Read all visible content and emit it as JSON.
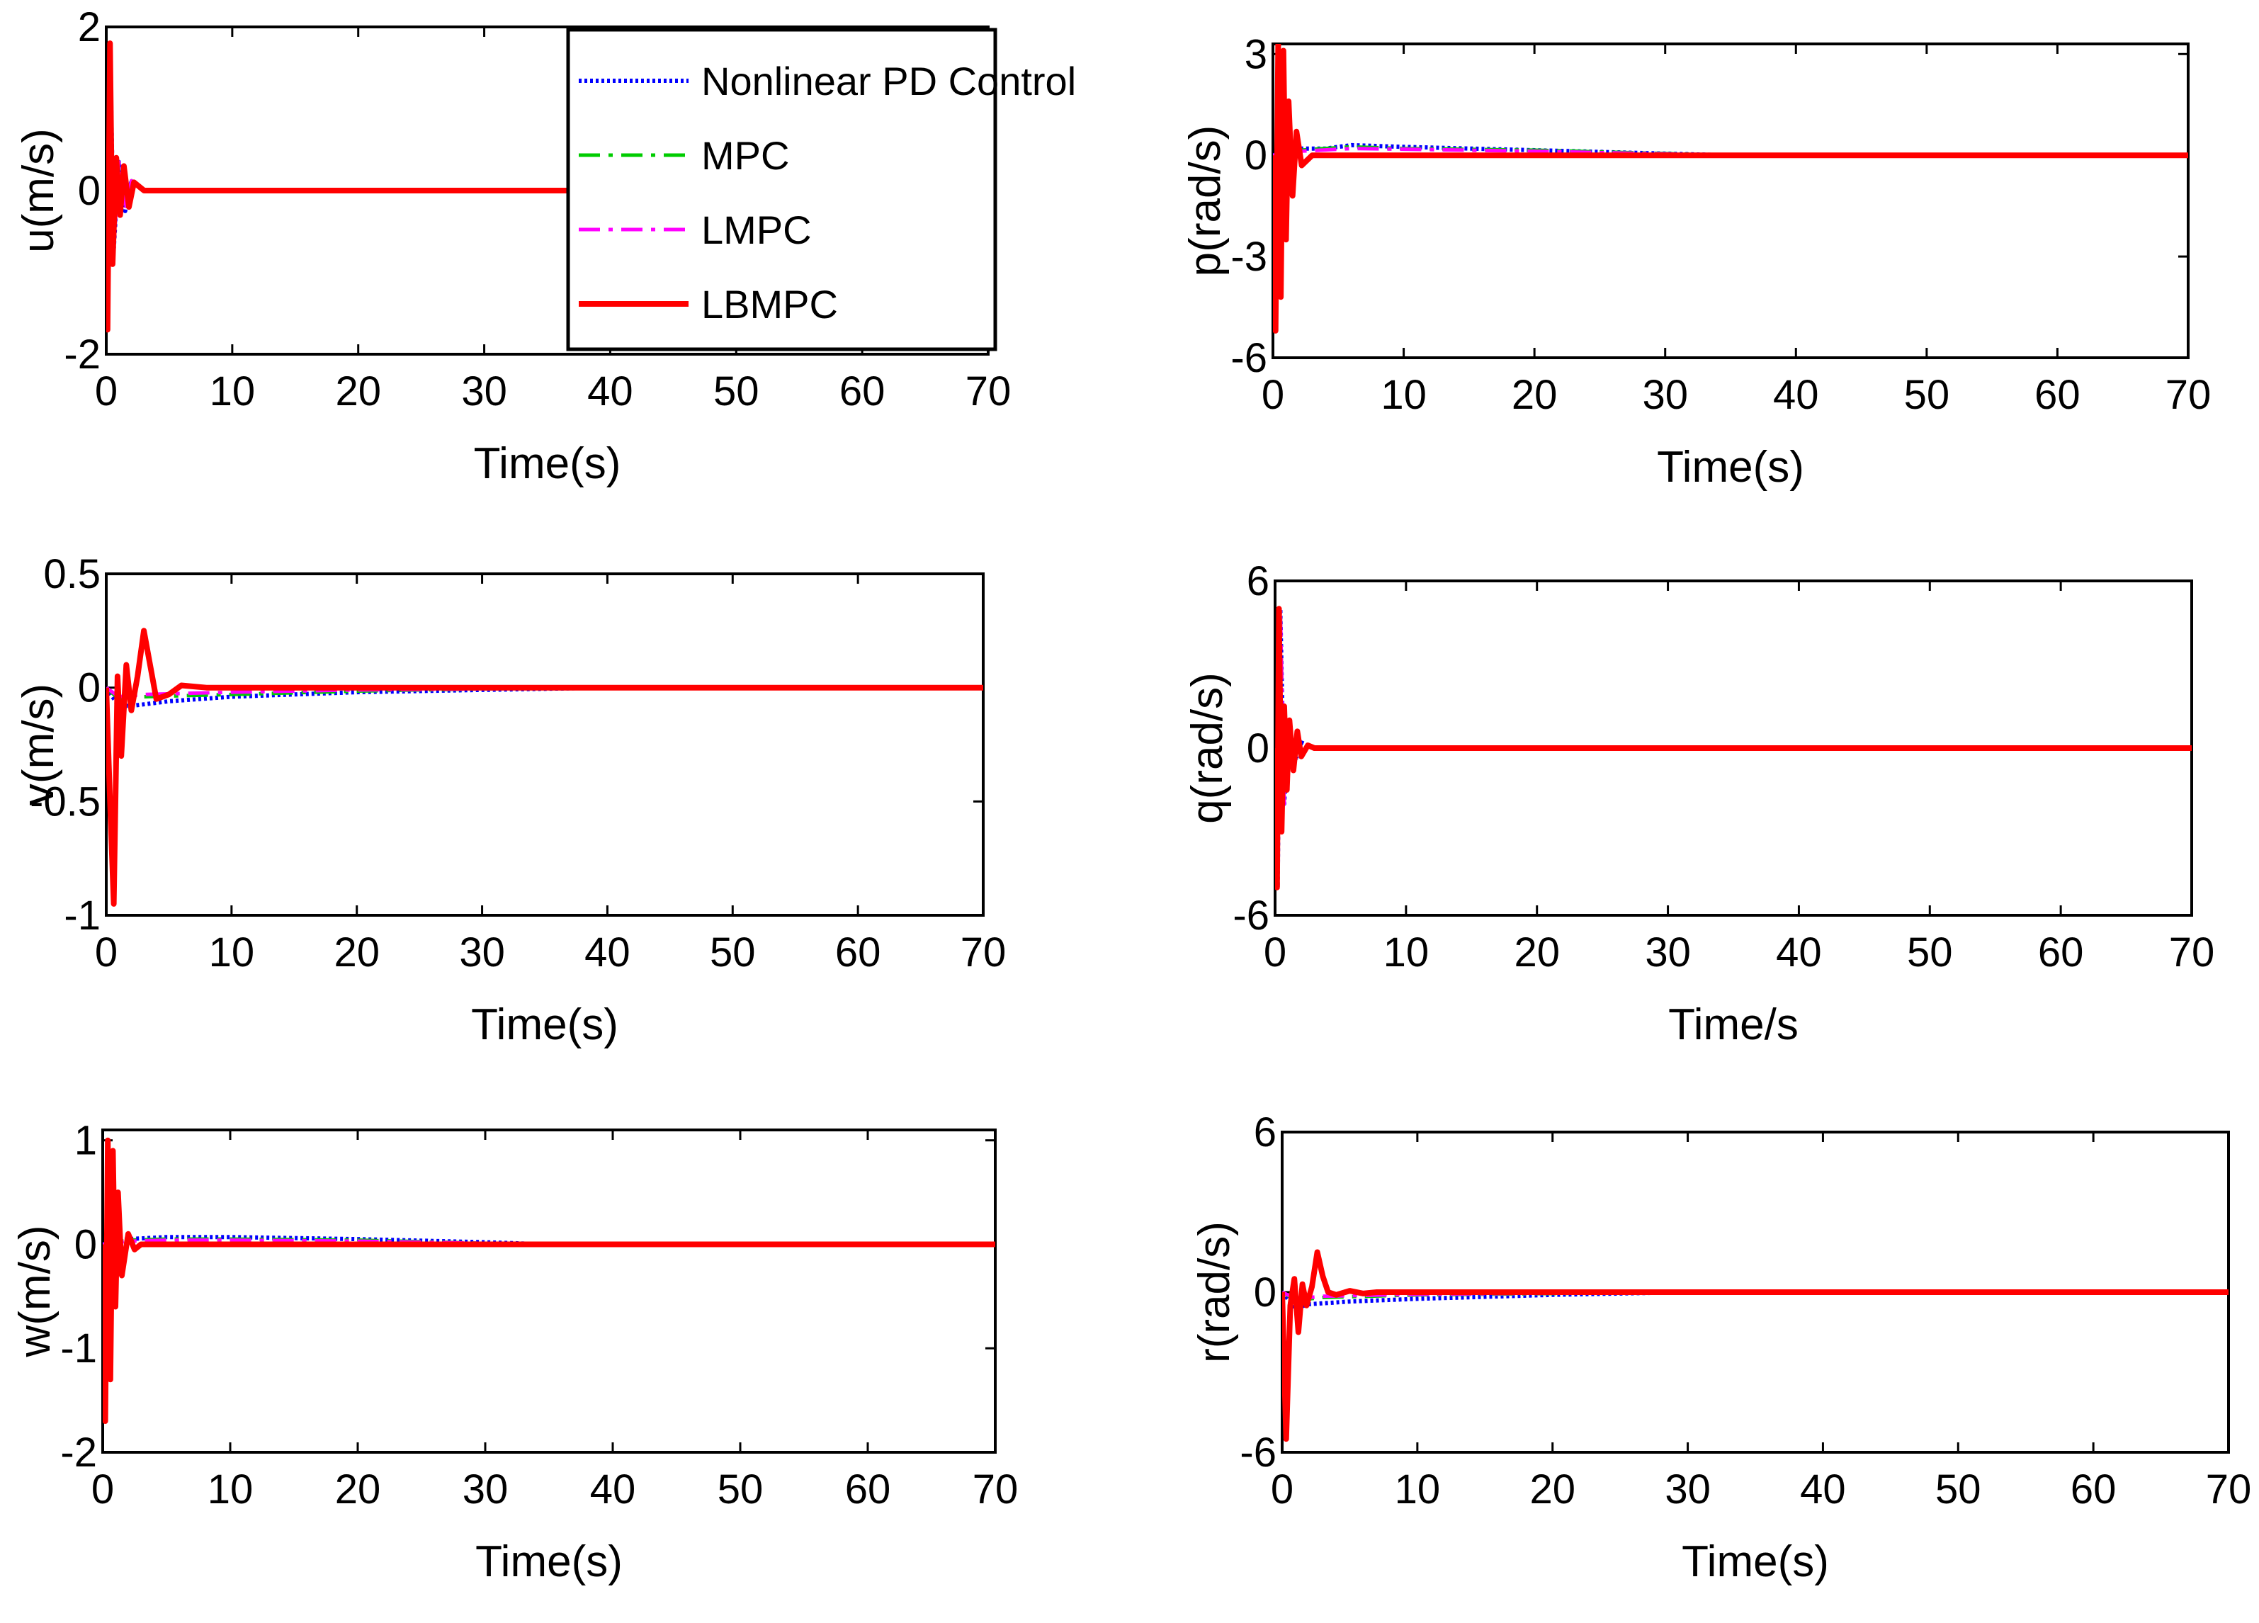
{
  "chart_data": [
    {
      "id": "u",
      "type": "line",
      "ylabel": "u(m/s)",
      "xlabel": "Time(s)",
      "xlim": [
        0,
        70
      ],
      "ylim": [
        -2,
        2
      ],
      "xticks": [
        0,
        10,
        20,
        30,
        40,
        50,
        60,
        70
      ],
      "yticks": [
        -2,
        0,
        2
      ],
      "ytick_labels": [
        "-2",
        "0",
        "2"
      ],
      "has_legend": true,
      "series": [
        {
          "name": "Nonlinear PD Control",
          "x": [
            0,
            0.1,
            0.3,
            0.6,
            1,
            1.5,
            2,
            3,
            70
          ],
          "y": [
            0,
            -1.6,
            1.8,
            -0.7,
            0.35,
            -0.25,
            0.12,
            0,
            0
          ]
        },
        {
          "name": "MPC",
          "x": [
            0,
            0.1,
            0.3,
            0.6,
            1,
            1.5,
            2,
            3,
            70
          ],
          "y": [
            0,
            -1.6,
            1.8,
            -0.7,
            0.35,
            -0.25,
            0.12,
            0,
            0
          ]
        },
        {
          "name": "LMPC",
          "x": [
            0,
            0.1,
            0.3,
            0.6,
            1,
            1.5,
            2,
            3,
            70
          ],
          "y": [
            0,
            -1.6,
            1.8,
            -0.7,
            0.35,
            -0.25,
            0.12,
            0,
            0
          ]
        },
        {
          "name": "LBMPC",
          "x": [
            0,
            0.1,
            0.3,
            0.5,
            0.8,
            1.1,
            1.4,
            1.8,
            2.2,
            3,
            70
          ],
          "y": [
            0,
            -1.7,
            1.8,
            -0.9,
            0.4,
            -0.3,
            0.3,
            -0.2,
            0.1,
            0,
            0
          ]
        }
      ]
    },
    {
      "id": "p",
      "type": "line",
      "ylabel": "p(rad/s)",
      "xlabel": "Time(s)",
      "xlim": [
        0,
        70
      ],
      "ylim": [
        -6,
        3.3
      ],
      "xticks": [
        0,
        10,
        20,
        30,
        40,
        50,
        60,
        70
      ],
      "yticks": [
        -6,
        -3,
        0,
        3
      ],
      "ytick_labels": [
        "-6",
        "-3",
        "0",
        "3"
      ],
      "has_legend": false,
      "series": [
        {
          "name": "Nonlinear PD Control",
          "x": [
            0,
            2,
            4,
            6,
            10,
            20,
            30,
            35,
            70
          ],
          "y": [
            0,
            0.2,
            0.2,
            0.3,
            0.25,
            0.15,
            0.05,
            0,
            0
          ]
        },
        {
          "name": "MPC",
          "x": [
            0,
            2,
            6,
            10,
            20,
            30,
            35,
            70
          ],
          "y": [
            0,
            0.15,
            0.25,
            0.2,
            0.15,
            0.05,
            0,
            0
          ]
        },
        {
          "name": "LMPC",
          "x": [
            0,
            2,
            6,
            10,
            20,
            30,
            35,
            70
          ],
          "y": [
            0,
            0.12,
            0.2,
            0.18,
            0.12,
            0.04,
            0,
            0
          ]
        },
        {
          "name": "LBMPC",
          "x": [
            0,
            0.2,
            0.4,
            0.6,
            0.8,
            1,
            1.2,
            1.5,
            1.8,
            2.2,
            3,
            70
          ],
          "y": [
            0,
            -5.2,
            3.3,
            -4.2,
            3.1,
            -2.5,
            1.6,
            -1.2,
            0.7,
            -0.3,
            0,
            0
          ]
        }
      ]
    },
    {
      "id": "v",
      "type": "line",
      "ylabel": "v(m/s)",
      "xlabel": "Time(s)",
      "xlim": [
        0,
        70
      ],
      "ylim": [
        -1,
        0.5
      ],
      "xticks": [
        0,
        10,
        20,
        30,
        40,
        50,
        60,
        70
      ],
      "yticks": [
        -1,
        -0.5,
        0,
        0.5
      ],
      "ytick_labels": [
        "-1",
        "-0.5",
        "0",
        "0.5"
      ],
      "has_legend": false,
      "series": [
        {
          "name": "Nonlinear PD Control",
          "x": [
            0,
            1,
            2,
            5,
            10,
            20,
            30,
            40,
            70
          ],
          "y": [
            0,
            -0.08,
            -0.08,
            -0.06,
            -0.04,
            -0.02,
            -0.01,
            0,
            0
          ]
        },
        {
          "name": "MPC",
          "x": [
            0,
            1,
            3,
            10,
            20,
            30,
            40,
            70
          ],
          "y": [
            0,
            -0.05,
            -0.04,
            -0.03,
            -0.015,
            -0.005,
            0,
            0
          ]
        },
        {
          "name": "LMPC",
          "x": [
            0,
            1,
            3,
            10,
            20,
            30,
            40,
            70
          ],
          "y": [
            0,
            -0.04,
            -0.03,
            -0.02,
            -0.01,
            -0.005,
            0,
            0
          ]
        },
        {
          "name": "LBMPC",
          "x": [
            0,
            0.3,
            0.6,
            0.9,
            1.2,
            1.6,
            2,
            2.5,
            3,
            4,
            5,
            6,
            8,
            70
          ],
          "y": [
            0,
            -0.5,
            -0.95,
            0.05,
            -0.3,
            0.1,
            -0.1,
            0.05,
            0.25,
            -0.05,
            -0.03,
            0.01,
            0,
            0
          ]
        }
      ]
    },
    {
      "id": "q",
      "type": "line",
      "ylabel": "q(rad/s)",
      "xlabel": "Time/s",
      "xlim": [
        0,
        70
      ],
      "ylim": [
        -6,
        6
      ],
      "xticks": [
        0,
        10,
        20,
        30,
        40,
        50,
        60,
        70
      ],
      "yticks": [
        -6,
        0,
        6
      ],
      "ytick_labels": [
        "-6",
        "0",
        "6"
      ],
      "has_legend": false,
      "series": [
        {
          "name": "Nonlinear PD Control",
          "x": [
            0,
            0.2,
            0.4,
            0.7,
            1,
            1.5,
            2,
            3,
            70
          ],
          "y": [
            0,
            -5,
            5,
            -2,
            1,
            -0.5,
            0.2,
            0,
            0
          ]
        },
        {
          "name": "MPC",
          "x": [
            0,
            0.2,
            0.4,
            0.7,
            1,
            1.5,
            2,
            3,
            70
          ],
          "y": [
            0,
            -5,
            5,
            -2,
            1,
            -0.5,
            0.2,
            0,
            0
          ]
        },
        {
          "name": "LMPC",
          "x": [
            0,
            0.2,
            0.4,
            0.7,
            1,
            1.5,
            2,
            3,
            70
          ],
          "y": [
            0,
            -5,
            5,
            -2,
            1,
            -0.5,
            0.2,
            0,
            0
          ]
        },
        {
          "name": "LBMPC",
          "x": [
            0,
            0.15,
            0.3,
            0.5,
            0.7,
            0.9,
            1.1,
            1.4,
            1.7,
            2,
            2.5,
            3,
            70
          ],
          "y": [
            0,
            -5,
            5,
            -3,
            1.5,
            -1.5,
            1,
            -0.8,
            0.6,
            -0.3,
            0.1,
            0,
            0
          ]
        }
      ]
    },
    {
      "id": "w",
      "type": "line",
      "ylabel": "w(m/s)",
      "xlabel": "Time(s)",
      "xlim": [
        0,
        70
      ],
      "ylim": [
        -2,
        1.1
      ],
      "xticks": [
        0,
        10,
        20,
        30,
        40,
        50,
        60,
        70
      ],
      "yticks": [
        -2,
        -1,
        0,
        1
      ],
      "ytick_labels": [
        "-2",
        "-1",
        "0",
        "1"
      ],
      "has_legend": false,
      "series": [
        {
          "name": "Nonlinear PD Control",
          "x": [
            0,
            2,
            5,
            10,
            20,
            30,
            35,
            70
          ],
          "y": [
            0,
            0.05,
            0.07,
            0.07,
            0.05,
            0.02,
            0,
            0
          ]
        },
        {
          "name": "MPC",
          "x": [
            0,
            2,
            5,
            10,
            20,
            30,
            35,
            70
          ],
          "y": [
            0,
            0.04,
            0.05,
            0.05,
            0.04,
            0.01,
            0,
            0
          ]
        },
        {
          "name": "LMPC",
          "x": [
            0,
            2,
            5,
            10,
            20,
            30,
            35,
            70
          ],
          "y": [
            0,
            0.03,
            0.04,
            0.04,
            0.03,
            0.01,
            0,
            0
          ]
        },
        {
          "name": "LBMPC",
          "x": [
            0,
            0.2,
            0.4,
            0.6,
            0.8,
            1,
            1.2,
            1.5,
            2,
            2.5,
            3,
            70
          ],
          "y": [
            0,
            -1.7,
            1.0,
            -1.3,
            0.9,
            -0.6,
            0.5,
            -0.3,
            0.1,
            -0.05,
            0,
            0
          ]
        }
      ]
    },
    {
      "id": "r",
      "type": "line",
      "ylabel": "r(rad/s)",
      "xlabel": "Time(s)",
      "xlim": [
        0,
        70
      ],
      "ylim": [
        -6,
        6
      ],
      "xticks": [
        0,
        10,
        20,
        30,
        40,
        50,
        60,
        70
      ],
      "yticks": [
        -6,
        0,
        6
      ],
      "ytick_labels": [
        "-6",
        "0",
        "6"
      ],
      "has_legend": false,
      "series": [
        {
          "name": "Nonlinear PD Control",
          "x": [
            0,
            1,
            2,
            5,
            10,
            20,
            30,
            70
          ],
          "y": [
            0,
            -0.6,
            -0.45,
            -0.35,
            -0.25,
            -0.1,
            0,
            0
          ]
        },
        {
          "name": "MPC",
          "x": [
            0,
            1,
            3,
            10,
            20,
            30,
            70
          ],
          "y": [
            0,
            -0.3,
            -0.2,
            -0.1,
            -0.05,
            0,
            0
          ]
        },
        {
          "name": "LMPC",
          "x": [
            0,
            1,
            3,
            10,
            20,
            30,
            70
          ],
          "y": [
            0,
            -0.25,
            -0.15,
            -0.08,
            -0.04,
            0,
            0
          ]
        },
        {
          "name": "LBMPC",
          "x": [
            0,
            0.3,
            0.6,
            0.9,
            1.2,
            1.5,
            1.8,
            2.2,
            2.6,
            3,
            3.4,
            4,
            5,
            6,
            7,
            70
          ],
          "y": [
            0,
            -5.5,
            -0.5,
            0.5,
            -1.5,
            0.3,
            -0.5,
            0.2,
            1.5,
            0.6,
            0,
            -0.1,
            0.05,
            -0.05,
            0,
            0
          ]
        }
      ]
    }
  ],
  "legend": {
    "entries": [
      {
        "label": "Nonlinear PD Control",
        "color": "#0000ff",
        "style": "dotted"
      },
      {
        "label": "MPC",
        "color": "#00cc00",
        "style": "dashdot"
      },
      {
        "label": "LMPC",
        "color": "#ff00ff",
        "style": "dashdot"
      },
      {
        "label": "LBMPC",
        "color": "#ff0000",
        "style": "solid"
      }
    ]
  },
  "series_styles": {
    "Nonlinear PD Control": {
      "color": "#0000ff"
    },
    "MPC": {
      "color": "#00cc00"
    },
    "LMPC": {
      "color": "#ff00ff"
    },
    "LBMPC": {
      "color": "#ff0000"
    }
  }
}
